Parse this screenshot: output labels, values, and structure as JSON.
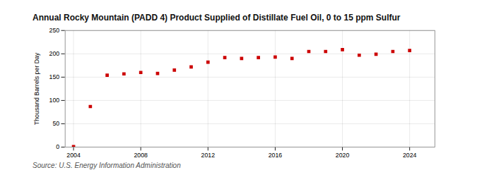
{
  "chart_data": {
    "type": "scatter",
    "title": "Annual Rocky Mountain (PADD 4) Product Supplied of Distillate Fuel Oil, 0 to 15 ppm Sulfur",
    "ylabel": "Thousand Barrels per Day",
    "source": "Source: U.S. Energy Information Administration",
    "x": [
      2004,
      2005,
      2006,
      2007,
      2008,
      2009,
      2010,
      2011,
      2012,
      2013,
      2014,
      2015,
      2016,
      2017,
      2018,
      2019,
      2020,
      2021,
      2022,
      2023,
      2024
    ],
    "values": [
      1,
      87,
      154,
      157,
      160,
      158,
      165,
      172,
      182,
      192,
      190,
      192,
      193,
      190,
      205,
      205,
      209,
      197,
      199,
      205,
      207
    ],
    "color": "#cc0000",
    "marker": "square",
    "xlim": [
      2003.5,
      2025.5
    ],
    "ylim": [
      0,
      250
    ],
    "xticks": [
      2004,
      2008,
      2012,
      2016,
      2020,
      2024
    ],
    "yticks": [
      0,
      50,
      100,
      150,
      200,
      250
    ],
    "grid": true
  }
}
